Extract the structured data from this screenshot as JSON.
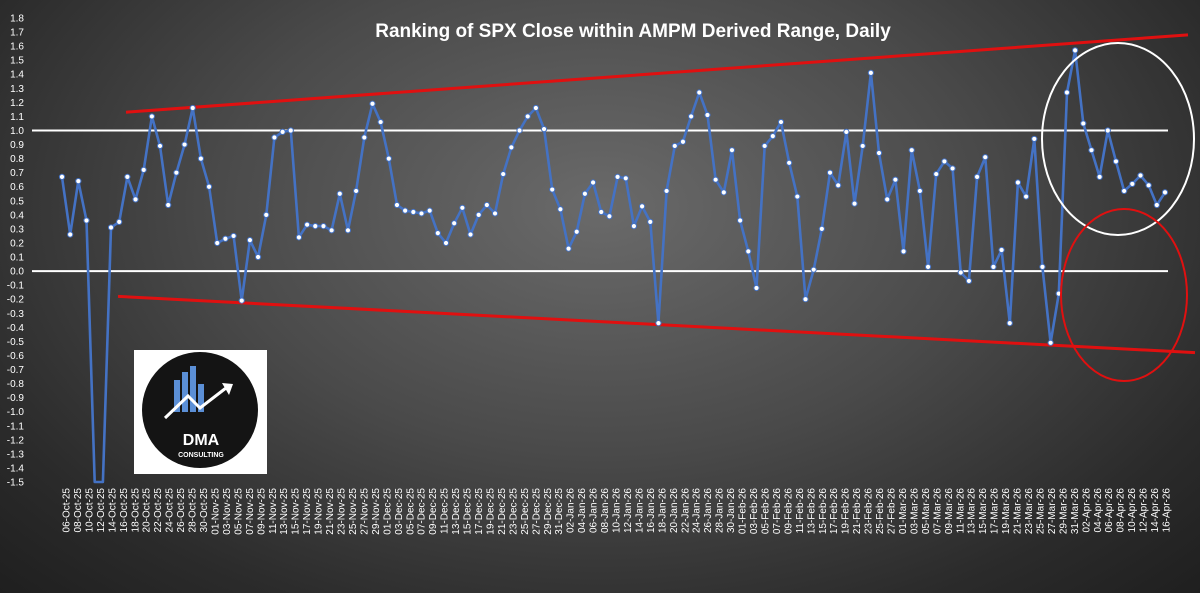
{
  "chart_data": {
    "type": "line",
    "title": "Ranking of SPX Close within AMPM Derived Range, Daily",
    "xlabel": "",
    "ylabel": "",
    "ylim": [
      -1.5,
      1.8
    ],
    "y_ticks": [
      "1.8",
      "1.7",
      "1.6",
      "1.5",
      "1.4",
      "1.3",
      "1.2",
      "1.1",
      "1.0",
      "0.9",
      "0.8",
      "0.7",
      "0.6",
      "0.5",
      "0.4",
      "0.3",
      "0.2",
      "0.1",
      "0.0",
      "-0.1",
      "-0.2",
      "-0.3",
      "-0.4",
      "-0.5",
      "-0.6",
      "-0.7",
      "-0.8",
      "-0.9",
      "-1.0",
      "-1.1",
      "-1.2",
      "-1.3",
      "-1.4",
      "-1.5"
    ],
    "x_tick_labels": [
      "06-Oct-25",
      "08-Oct-25",
      "10-Oct-25",
      "12-Oct-25",
      "14-Oct-25",
      "16-Oct-25",
      "18-Oct-25",
      "20-Oct-25",
      "22-Oct-25",
      "24-Oct-25",
      "26-Oct-25",
      "28-Oct-25",
      "30-Oct-25",
      "01-Nov-25",
      "03-Nov-25",
      "05-Nov-25",
      "07-Nov-25",
      "09-Nov-25",
      "11-Nov-25",
      "13-Nov-25",
      "15-Nov-25",
      "17-Nov-25",
      "19-Nov-25",
      "21-Nov-25",
      "23-Nov-25",
      "25-Nov-25",
      "27-Nov-25",
      "29-Nov-25",
      "01-Dec-25",
      "03-Dec-25",
      "05-Dec-25",
      "07-Dec-25",
      "09-Dec-25",
      "11-Dec-25",
      "13-Dec-25",
      "15-Dec-25",
      "17-Dec-25",
      "19-Dec-25",
      "21-Dec-25",
      "23-Dec-25",
      "25-Dec-25",
      "27-Dec-25",
      "29-Dec-25",
      "31-Dec-25",
      "02-Jan-26",
      "04-Jan-26",
      "06-Jan-26",
      "08-Jan-26",
      "10-Jan-26",
      "12-Jan-26",
      "14-Jan-26",
      "16-Jan-26",
      "18-Jan-26",
      "20-Jan-26",
      "22-Jan-26",
      "24-Jan-26",
      "26-Jan-26",
      "28-Jan-26",
      "30-Jan-26",
      "01-Feb-26",
      "03-Feb-26",
      "05-Feb-26",
      "07-Feb-26",
      "09-Feb-26",
      "11-Feb-26",
      "13-Feb-26",
      "15-Feb-26",
      "17-Feb-26",
      "19-Feb-26",
      "21-Feb-26",
      "23-Feb-26",
      "25-Feb-26",
      "27-Feb-26",
      "01-Mar-26",
      "03-Mar-26",
      "05-Mar-26",
      "07-Mar-26",
      "09-Mar-26",
      "11-Mar-26",
      "13-Mar-26",
      "15-Mar-26",
      "17-Mar-26",
      "19-Mar-26",
      "21-Mar-26",
      "23-Mar-26",
      "25-Mar-26",
      "27-Mar-26",
      "29-Mar-26",
      "31-Mar-26",
      "02-Apr-26",
      "04-Apr-26",
      "06-Apr-26",
      "08-Apr-26",
      "10-Apr-26",
      "12-Apr-26",
      "14-Apr-26",
      "16-Apr-26"
    ],
    "series": [
      {
        "values": [
          0.67,
          0.26,
          0.64,
          0.36,
          -1.5,
          -1.5,
          0.31,
          0.35,
          0.67,
          0.51,
          0.72,
          1.1,
          0.89,
          0.47,
          0.7,
          0.9,
          1.16,
          0.8,
          0.6,
          0.2,
          0.23,
          0.25,
          -0.21,
          0.22,
          0.1,
          0.4,
          0.95,
          0.99,
          1.0,
          0.24,
          0.33,
          0.32,
          0.32,
          0.29,
          0.55,
          0.29,
          0.57,
          0.95,
          1.19,
          1.06,
          0.8,
          0.47,
          0.43,
          0.42,
          0.41,
          0.43,
          0.27,
          0.2,
          0.34,
          0.45,
          0.26,
          0.4,
          0.47,
          0.41,
          0.69,
          0.88,
          1.0,
          1.1,
          1.16,
          1.01,
          0.58,
          0.44,
          0.16,
          0.28,
          0.55,
          0.63,
          0.42,
          0.39,
          0.67,
          0.66,
          0.32,
          0.46,
          0.35,
          -0.37,
          0.57,
          0.89,
          0.92,
          1.1,
          1.27,
          1.11,
          0.65,
          0.56,
          0.86,
          0.36,
          0.14,
          -0.12,
          0.89,
          0.96,
          1.06,
          0.77,
          0.53,
          -0.2,
          0.01,
          0.3,
          0.7,
          0.61,
          0.99,
          0.48,
          0.89,
          1.41,
          0.84,
          0.51,
          0.65,
          0.14,
          0.86,
          0.57,
          0.03,
          0.69,
          0.78,
          0.73,
          -0.01,
          -0.07,
          0.67,
          0.81,
          0.03,
          0.15,
          -0.37,
          0.63,
          0.53,
          0.94,
          0.03,
          -0.51,
          -0.16,
          1.27,
          1.57,
          1.05,
          0.86,
          0.67,
          1.0,
          0.78,
          0.57,
          0.62,
          0.68,
          0.61,
          0.47,
          0.56
        ]
      }
    ],
    "reference_lines": [
      1.0,
      0.0
    ],
    "colors": {
      "series_line": "#4472c4",
      "markers": "#ffffff",
      "trendlines": "#e01010",
      "reference_lines": "#ffffff",
      "circle_top": "#ffffff",
      "circle_bottom": "#e01010"
    },
    "grid": false,
    "legend": "none"
  },
  "logo": {
    "text_main": "DMA",
    "text_sub": "CONSULTING"
  }
}
